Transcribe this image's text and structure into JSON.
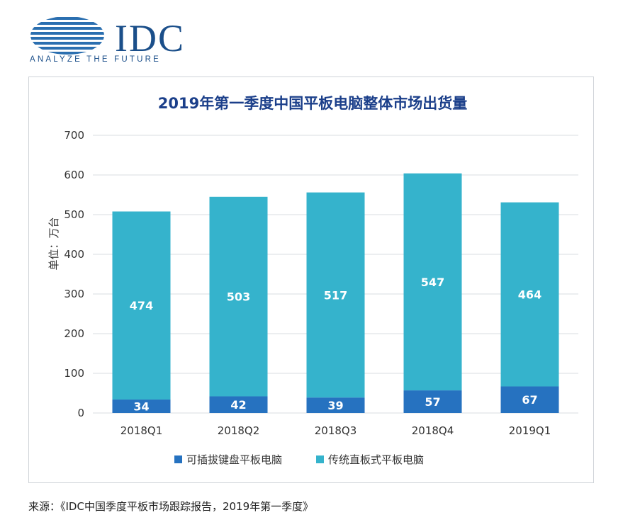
{
  "logo": {
    "brand": "IDC",
    "tagline": "ANALYZE THE FUTURE"
  },
  "source": "来源：《IDC中国季度平板市场跟踪报告，2019年第一季度》",
  "chart_data": {
    "type": "bar",
    "stacked": true,
    "title": "2019年第一季度中国平板电脑整体市场出货量",
    "ylabel": "单位：万台",
    "xlabel": "",
    "ylim": [
      0,
      700
    ],
    "yticks": [
      0,
      100,
      200,
      300,
      400,
      500,
      600,
      700
    ],
    "grid": true,
    "legend_position": "bottom",
    "categories": [
      "2018Q1",
      "2018Q2",
      "2018Q3",
      "2018Q4",
      "2019Q1"
    ],
    "series": [
      {
        "name": "可插拔键盘平板电脑",
        "values": [
          34,
          42,
          39,
          57,
          67
        ],
        "color": "#2672c0"
      },
      {
        "name": "传统直板式平板电脑",
        "values": [
          474,
          503,
          517,
          547,
          464
        ],
        "color": "#35b3cc"
      }
    ]
  }
}
